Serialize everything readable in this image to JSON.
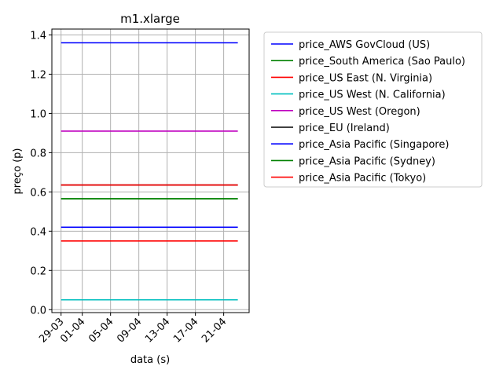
{
  "chart_data": {
    "type": "line",
    "title": "m1.xlarge",
    "xlabel": "data (s)",
    "ylabel": "preço (p)",
    "x_ticks": [
      "29-03",
      "01-04",
      "05-04",
      "09-04",
      "13-04",
      "17-04",
      "21-04"
    ],
    "x_tick_days": [
      0,
      3,
      7,
      11,
      15,
      19,
      23
    ],
    "x_range_days": [
      -1.3,
      26.6
    ],
    "x_data_days": [
      0,
      25
    ],
    "y_ticks": [
      "0.0",
      "0.2",
      "0.4",
      "0.6",
      "0.8",
      "1.0",
      "1.2",
      "1.4"
    ],
    "ylim": [
      -0.015,
      1.43
    ],
    "grid": true,
    "legend_position": "outside-right",
    "series": [
      {
        "name": "price_AWS GovCloud (US)",
        "color": "#0000ff",
        "value": 1.36
      },
      {
        "name": "price_South America (Sao Paulo)",
        "color": "#008000",
        "value": 0.565
      },
      {
        "name": "price_US East (N. Virginia)",
        "color": "#ff0000",
        "value": 0.35
      },
      {
        "name": "price_US West (N. California)",
        "color": "#00bfbf",
        "value": 0.05
      },
      {
        "name": "price_US West (Oregon)",
        "color": "#bf00bf",
        "value": 0.91
      },
      {
        "name": "price_EU (Ireland)",
        "color": "#000000",
        "value": 0.635
      },
      {
        "name": "price_Asia Pacific (Singapore)",
        "color": "#0000ff",
        "value": 0.42
      },
      {
        "name": "price_Asia Pacific (Sydney)",
        "color": "#008000",
        "value": 0.565
      },
      {
        "name": "price_Asia Pacific (Tokyo)",
        "color": "#ff0000",
        "value": 0.635
      }
    ]
  }
}
